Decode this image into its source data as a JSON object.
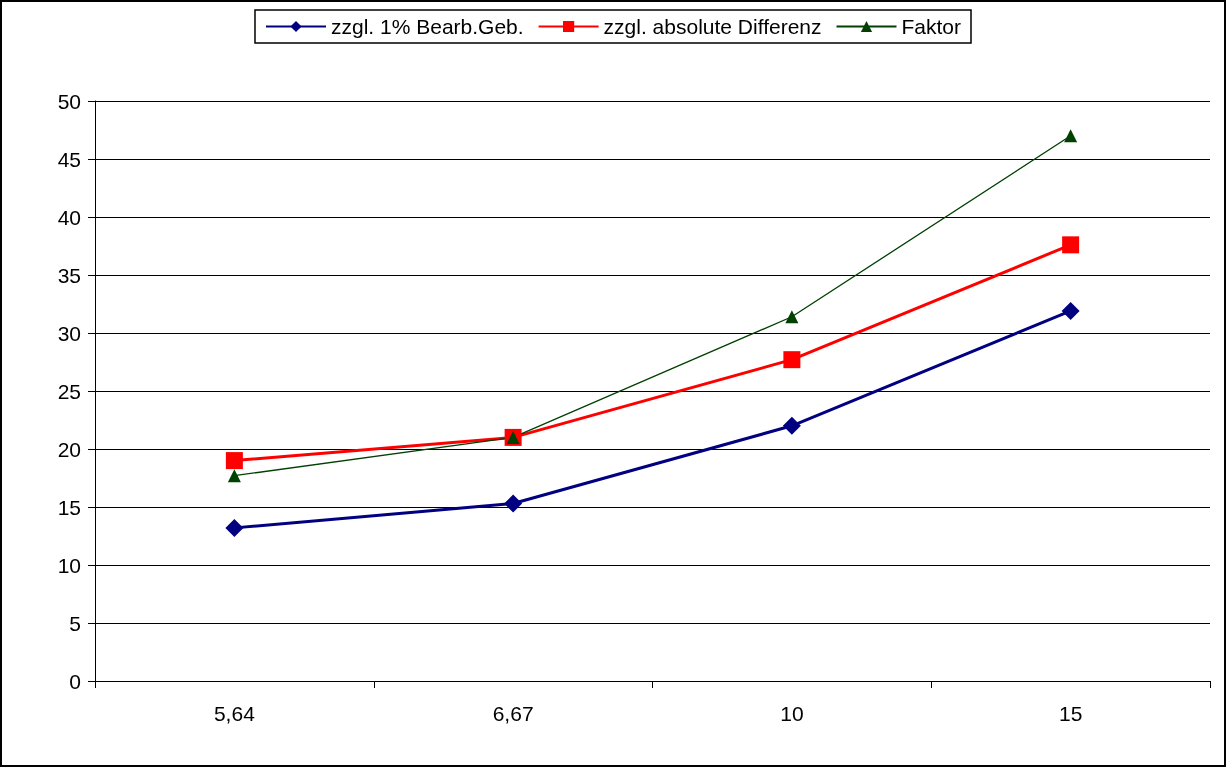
{
  "chart_data": {
    "type": "line",
    "categories": [
      "5,64",
      "6,67",
      "10",
      "15"
    ],
    "series": [
      {
        "name": "zzgl. 1% Bearb.Geb.",
        "color": "#000080",
        "marker": "diamond",
        "values": [
          13.2,
          15.3,
          22,
          31.9
        ]
      },
      {
        "name": "zzgl. absolute Differenz",
        "color": "#ff0000",
        "marker": "square",
        "values": [
          19,
          21,
          27.7,
          37.6
        ]
      },
      {
        "name": "Faktor",
        "color": "#004000",
        "marker": "triangle",
        "values": [
          17.7,
          21,
          31.4,
          47
        ]
      }
    ],
    "ylim": [
      0,
      50
    ],
    "yticks": [
      0,
      5,
      10,
      15,
      20,
      25,
      30,
      35,
      40,
      45,
      50
    ],
    "grid": "y",
    "legend": "top"
  }
}
